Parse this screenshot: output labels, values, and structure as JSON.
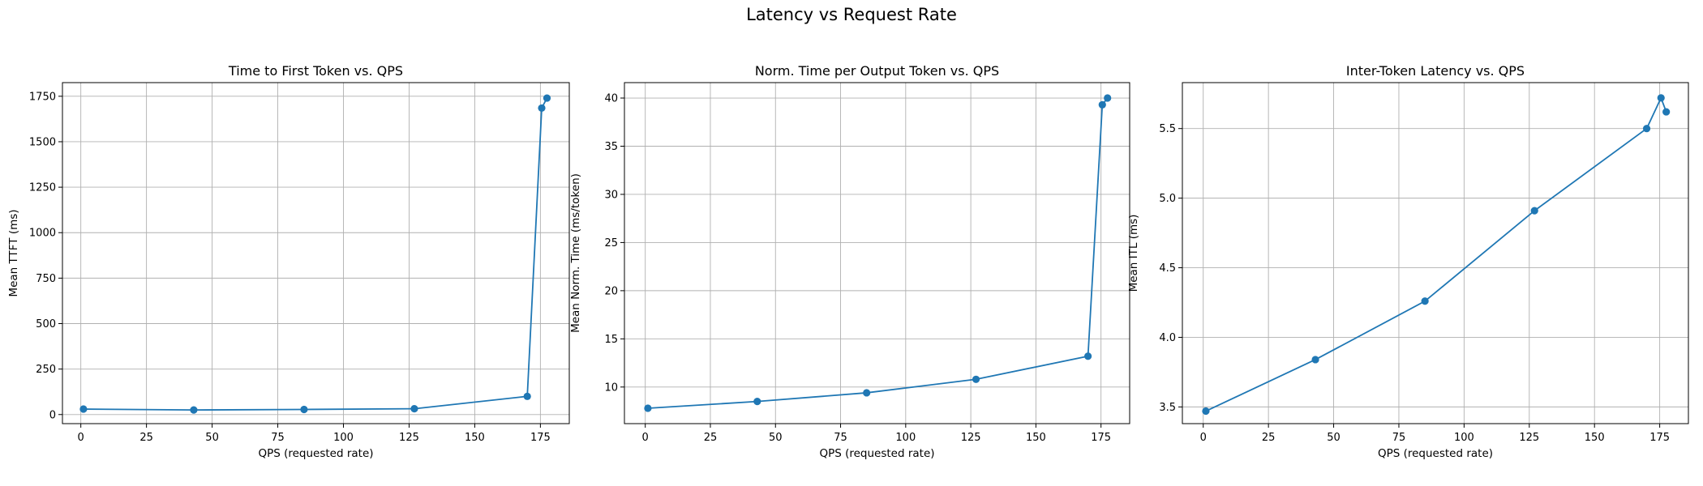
{
  "figure": {
    "title": "Latency vs Request Rate"
  },
  "colors": {
    "series": "#1f77b4"
  },
  "chart_data": [
    {
      "type": "line",
      "title": "Time to First Token vs. QPS",
      "xlabel": "QPS (requested rate)",
      "ylabel": "Mean TTFT (ms)",
      "xlim": [
        -7,
        186
      ],
      "ylim": [
        -50,
        1825
      ],
      "xticks": [
        0,
        25,
        50,
        75,
        100,
        125,
        150,
        175
      ],
      "yticks": [
        0,
        250,
        500,
        750,
        1000,
        1250,
        1500,
        1750
      ],
      "grid": true,
      "marker": "circle",
      "x": [
        1,
        43,
        85,
        127,
        170,
        175.5,
        177.5
      ],
      "y": [
        30,
        25,
        28,
        32,
        100,
        1685,
        1740
      ]
    },
    {
      "type": "line",
      "title": "Norm. Time per Output Token vs. QPS",
      "xlabel": "QPS (requested rate)",
      "ylabel": "Mean Norm. Time (ms/token)",
      "xlim": [
        -8,
        186
      ],
      "ylim": [
        6.2,
        41.6
      ],
      "xticks": [
        0,
        25,
        50,
        75,
        100,
        125,
        150,
        175
      ],
      "yticks": [
        10,
        15,
        20,
        25,
        30,
        35,
        40
      ],
      "grid": true,
      "marker": "circle",
      "x": [
        1,
        43,
        85,
        127,
        170,
        175.5,
        177.5
      ],
      "y": [
        7.8,
        8.5,
        9.4,
        10.8,
        13.2,
        39.3,
        40.0
      ]
    },
    {
      "type": "line",
      "title": "Inter-Token Latency vs. QPS",
      "xlabel": "QPS (requested rate)",
      "ylabel": "Mean ITL (ms)",
      "xlim": [
        -8,
        186
      ],
      "ylim": [
        3.38,
        5.83
      ],
      "xticks": [
        0,
        25,
        50,
        75,
        100,
        125,
        150,
        175
      ],
      "yticks": [
        3.5,
        4.0,
        4.5,
        5.0,
        5.5
      ],
      "ytick_labels": [
        "3.5",
        "4.0",
        "4.5",
        "5.0",
        "5.5"
      ],
      "grid": true,
      "marker": "circle",
      "x": [
        1,
        43,
        85,
        127,
        170,
        175.5,
        177.5
      ],
      "y": [
        3.47,
        3.84,
        4.26,
        4.91,
        5.5,
        5.72,
        5.62
      ]
    }
  ]
}
